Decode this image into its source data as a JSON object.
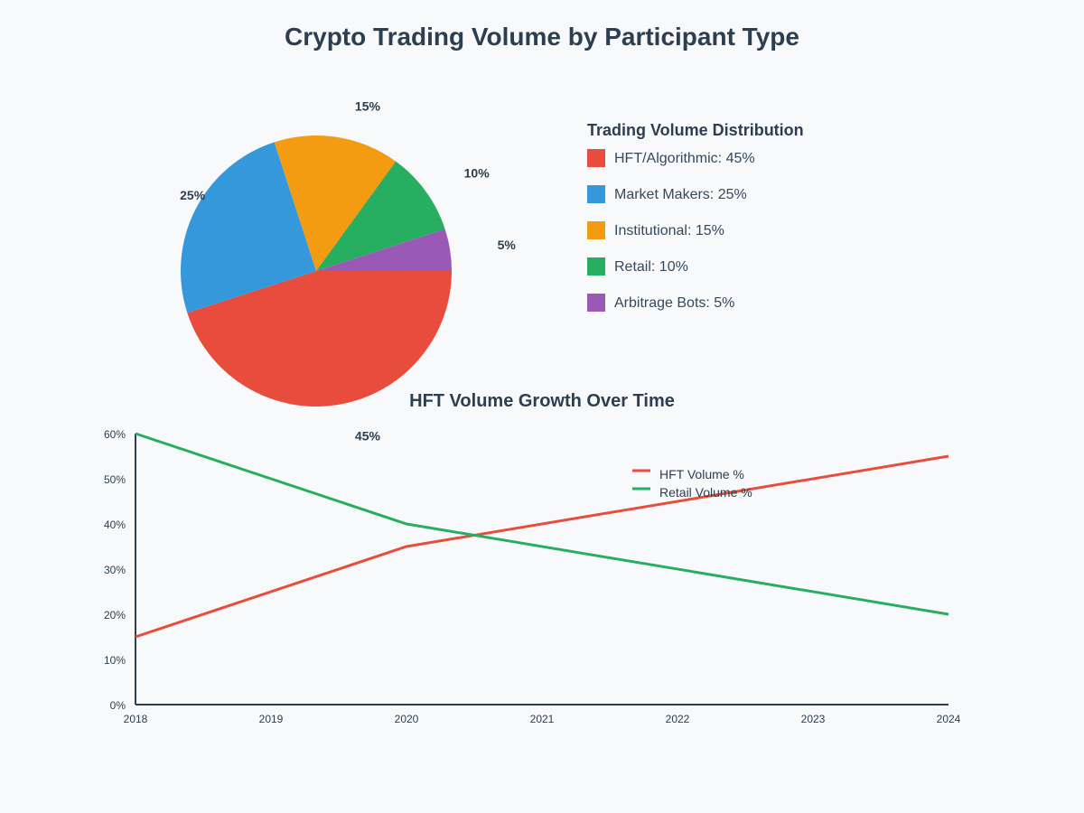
{
  "title": "Crypto Trading Volume by Participant Type",
  "chart_data": [
    {
      "type": "pie",
      "title": "",
      "legend_title": "Trading Volume Distribution",
      "legend_position": "right",
      "slices": [
        {
          "name": "HFT/Algorithmic",
          "value": 45,
          "label": "45%",
          "legend": "HFT/Algorithmic: 45%",
          "color": "#e74c3c"
        },
        {
          "name": "Market Makers",
          "value": 25,
          "label": "25%",
          "legend": "Market Makers: 25%",
          "color": "#3498db"
        },
        {
          "name": "Institutional",
          "value": 15,
          "label": "15%",
          "legend": "Institutional: 15%",
          "color": "#f39c12"
        },
        {
          "name": "Retail",
          "value": 10,
          "label": "10%",
          "legend": "Retail: 10%",
          "color": "#27ae60"
        },
        {
          "name": "Arbitrage Bots",
          "value": 5,
          "label": "5%",
          "legend": "Arbitrage Bots: 5%",
          "color": "#9b59b6"
        }
      ]
    },
    {
      "type": "line",
      "title": "HFT Volume Growth Over Time",
      "xlabel": "",
      "ylabel": "",
      "x": [
        2018,
        2019,
        2020,
        2021,
        2022,
        2023,
        2024
      ],
      "x_tick_labels": [
        "2018",
        "2019",
        "2020",
        "2021",
        "2022",
        "2023",
        "2024"
      ],
      "ylim": [
        0,
        60
      ],
      "y_ticks": [
        0,
        10,
        20,
        30,
        40,
        50,
        60
      ],
      "y_tick_labels": [
        "0%",
        "10%",
        "20%",
        "30%",
        "40%",
        "50%",
        "60%"
      ],
      "grid": false,
      "legend_position": "top-right",
      "series": [
        {
          "name": "HFT Volume %",
          "color": "#e74c3c",
          "points": [
            [
              2018,
              15
            ],
            [
              2020,
              35
            ],
            [
              2024,
              55
            ]
          ]
        },
        {
          "name": "Retail Volume %",
          "color": "#27ae60",
          "points": [
            [
              2018,
              60
            ],
            [
              2020,
              40
            ],
            [
              2024,
              20
            ]
          ]
        }
      ]
    }
  ]
}
